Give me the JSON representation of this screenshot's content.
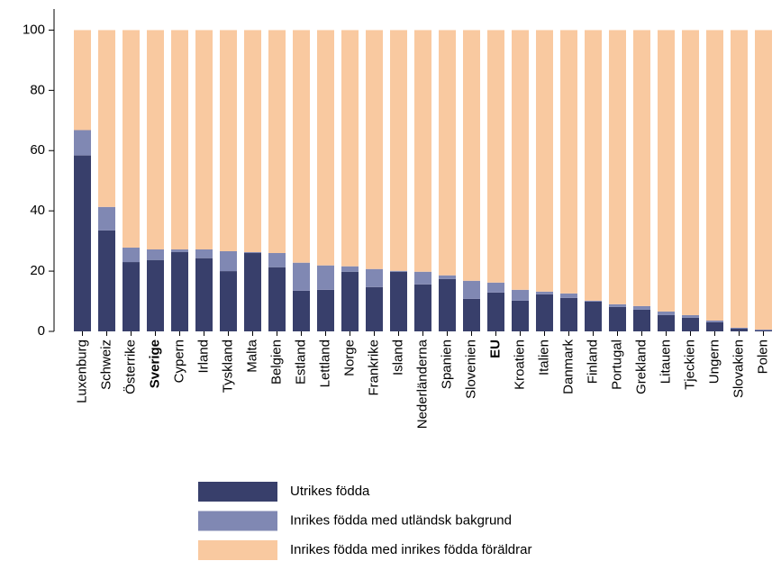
{
  "chart_data": {
    "type": "stacked_bar",
    "categories": [
      "Luxenburg",
      "Schweiz",
      "Österrike",
      "Sverige",
      "Cypern",
      "Irland",
      "Tyskland",
      "Malta",
      "Belgien",
      "Estland",
      "Lettland",
      "Norge",
      "Frankrike",
      "Island",
      "Nederländerna",
      "Spanien",
      "Slovenien",
      "EU",
      "Kroatien",
      "Italien",
      "Danmark",
      "Finland",
      "Portugal",
      "Grekland",
      "Litauen",
      "Tjeckien",
      "Ungern",
      "Slovakien",
      "Polen"
    ],
    "bold_categories": [
      3,
      17
    ],
    "series": [
      {
        "name": "Utrikes födda",
        "color": "#383f6b",
        "values": [
          58.4,
          33.5,
          23,
          23.7,
          26.3,
          24.3,
          20,
          26,
          21.3,
          13.5,
          13.8,
          19.8,
          14.7,
          19.8,
          15.6,
          17.4,
          10.8,
          12.9,
          10.2,
          12.3,
          11.1,
          9.9,
          8.1,
          7.2,
          5.4,
          4.5,
          3,
          0.9,
          0.3
        ]
      },
      {
        "name": "Inrikes födda med utländsk bakgrund",
        "color": "#8088b3",
        "values": [
          8.4,
          7.8,
          4.8,
          3.5,
          0.9,
          2.9,
          6.6,
          0.3,
          4.7,
          9.3,
          8.1,
          1.8,
          6,
          0.3,
          4.2,
          1.2,
          6,
          3.3,
          3.6,
          0.9,
          1.5,
          0.3,
          0.9,
          1.2,
          1.2,
          0.9,
          0.6,
          0.3,
          0.3
        ]
      },
      {
        "name": "Inrikes födda med inrikes födda föräldrar",
        "color": "#f9c9a0",
        "values": [
          33.2,
          58.7,
          72.2,
          72.8,
          72.8,
          72.8,
          73.4,
          73.7,
          74,
          77.2,
          78.1,
          78.4,
          79.3,
          79.9,
          80.2,
          81.4,
          83.2,
          83.8,
          86.2,
          86.8,
          87.4,
          89.8,
          91,
          91.6,
          93.4,
          94.6,
          96.4,
          98.8,
          99.4
        ]
      }
    ],
    "ylim": [
      0,
      107
    ],
    "yticks": [
      0,
      20,
      40,
      60,
      80,
      100
    ]
  }
}
